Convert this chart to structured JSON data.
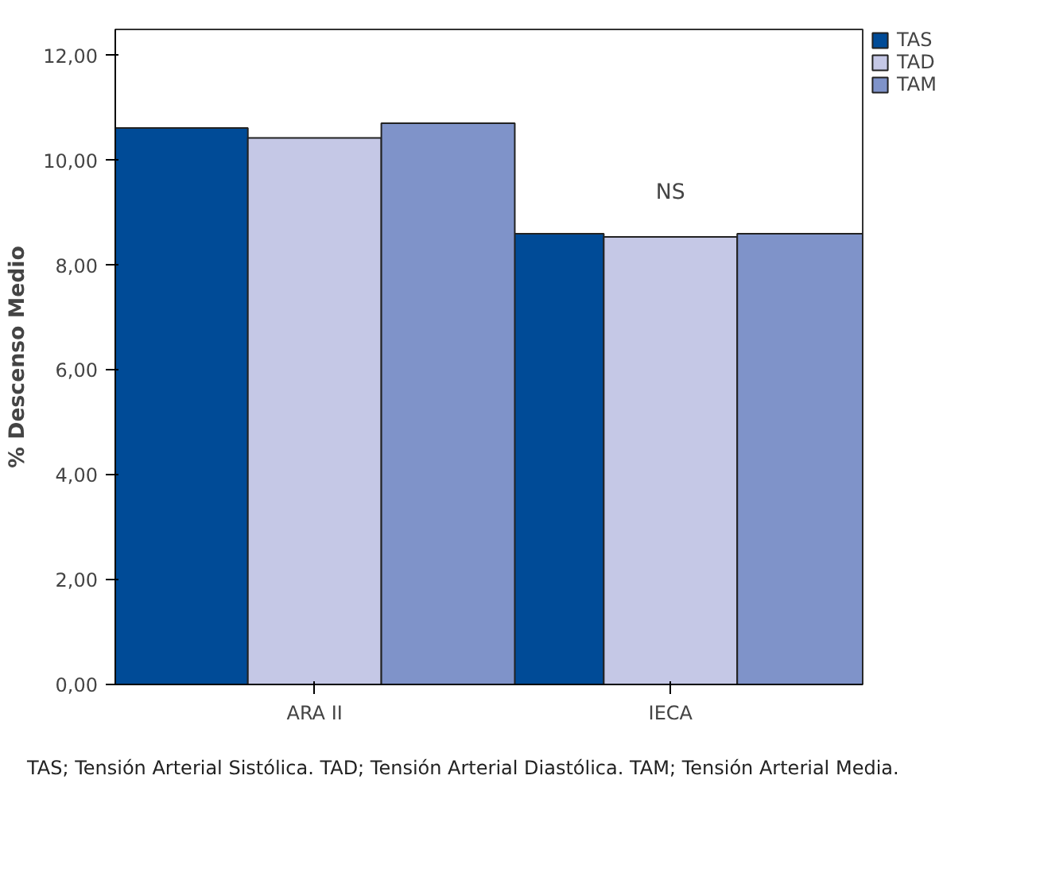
{
  "chart_data": {
    "type": "bar",
    "ylabel": "% Descenso Medio",
    "categories": [
      "ARA II",
      "IECA"
    ],
    "series": [
      {
        "name": "TAS",
        "color": "#004b97",
        "values": [
          10.62,
          8.6
        ]
      },
      {
        "name": "TAD",
        "color": "#c5c8e6",
        "values": [
          10.43,
          8.54
        ]
      },
      {
        "name": "TAM",
        "color": "#7f93c9",
        "values": [
          10.71,
          8.6
        ]
      }
    ],
    "ylim": [
      0,
      12.5
    ],
    "yticks": [
      {
        "value": 0,
        "label": "0,00"
      },
      {
        "value": 2,
        "label": "2,00"
      },
      {
        "value": 4,
        "label": "4,00"
      },
      {
        "value": 6,
        "label": "6,00"
      },
      {
        "value": 8,
        "label": "8,00"
      },
      {
        "value": 10,
        "label": "10,00"
      },
      {
        "value": 12,
        "label": "12,00"
      }
    ],
    "grid": false,
    "legend": "top right",
    "annotations": [
      "NS",
      "TAS; Tensión Arterial Sistólica. TAD; Tensión Arterial Diastólica. TAM; Tensión Arterial Media."
    ]
  }
}
